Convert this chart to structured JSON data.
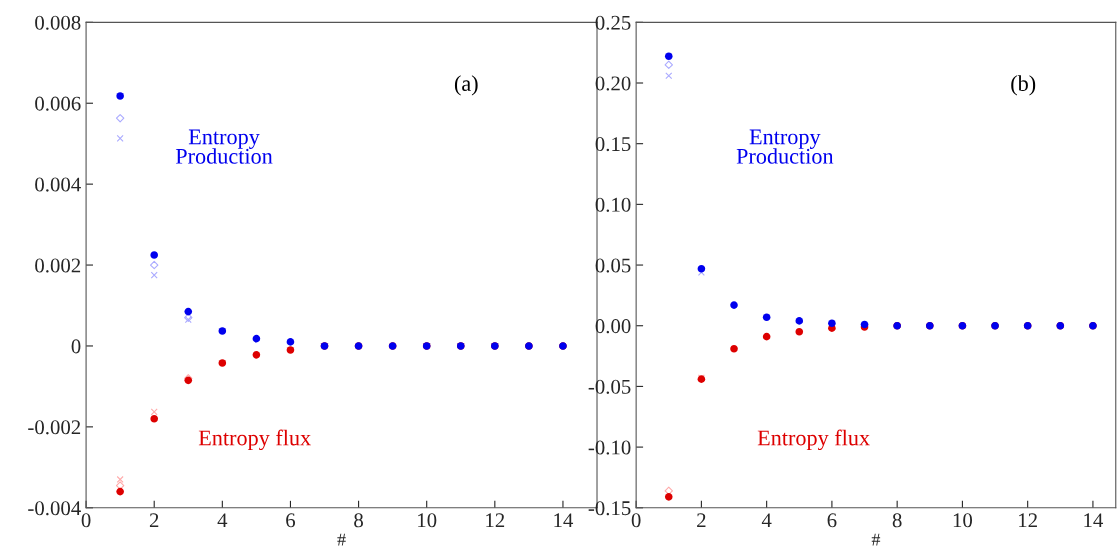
{
  "chart_data": [
    {
      "type": "scatter",
      "xlabel": "#",
      "annotations": [
        "(a)",
        "Entropy\nProduction",
        "Entropy flux"
      ],
      "x": [
        1,
        2,
        3,
        4,
        5,
        6,
        7,
        8,
        9,
        10,
        11,
        12,
        13,
        14
      ],
      "xlim": [
        0,
        15
      ],
      "xticks": [
        0,
        2,
        4,
        6,
        8,
        10,
        12,
        14
      ],
      "ylim": [
        -0.004,
        0.008
      ],
      "yticks": [
        -0.004,
        -0.002,
        0,
        0.002,
        0.004,
        0.006,
        0.008
      ],
      "series": [
        {
          "color": "#aaaaff",
          "marker": "cross",
          "values": [
            0.00513,
            0.00175,
            0.00065,
            null,
            null,
            null,
            null,
            null,
            null,
            null,
            null,
            null,
            null,
            null
          ]
        },
        {
          "color": "#aaaaff",
          "marker": "diamond",
          "values": [
            0.00563,
            0.002,
            0.0007,
            null,
            null,
            null,
            null,
            null,
            null,
            null,
            null,
            null,
            null,
            null
          ]
        },
        {
          "color": "#ffaaaa",
          "marker": "cross",
          "values": [
            -0.0033,
            -0.00163,
            null,
            null,
            null,
            null,
            null,
            null,
            null,
            null,
            null,
            null,
            null,
            null
          ]
        },
        {
          "color": "#ffaaaa",
          "marker": "diamond",
          "values": [
            -0.00345,
            null,
            -0.0008,
            null,
            null,
            null,
            null,
            null,
            null,
            null,
            null,
            null,
            null,
            null
          ]
        },
        {
          "color": "#dd0000",
          "marker": "circle",
          "values": [
            -0.0036,
            -0.0018,
            -0.00085,
            -0.00042,
            -0.00022,
            -0.0001,
            0,
            0,
            0,
            0,
            0,
            0,
            0,
            0
          ]
        },
        {
          "color": "#0000ee",
          "marker": "circle",
          "values": [
            0.00618,
            0.00225,
            0.00085,
            0.00037,
            0.00018,
            0.0001,
            0,
            0,
            0,
            0,
            0,
            0,
            0,
            0
          ]
        }
      ]
    },
    {
      "type": "scatter",
      "xlabel": "#",
      "annotations": [
        "(b)",
        "Entropy\nProduction",
        "Entropy flux"
      ],
      "x": [
        1,
        2,
        3,
        4,
        5,
        6,
        7,
        8,
        9,
        10,
        11,
        12,
        13,
        14
      ],
      "xlim": [
        0,
        14.7
      ],
      "xticks": [
        0,
        2,
        4,
        6,
        8,
        10,
        12,
        14
      ],
      "ylim": [
        -0.15,
        0.25
      ],
      "yticks": [
        {
          "value": -0.15,
          "label": "-0.15"
        },
        {
          "value": -0.1,
          "label": "-0.10"
        },
        {
          "value": -0.05,
          "label": "-0.05"
        },
        {
          "value": 0,
          "label": "0.00"
        },
        {
          "value": 0.05,
          "label": "0.05"
        },
        {
          "value": 0.1,
          "label": "0.10"
        },
        {
          "value": 0.15,
          "label": "0.15"
        },
        {
          "value": 0.2,
          "label": "0.20"
        },
        {
          "value": 0.25,
          "label": "0.25"
        }
      ],
      "series": [
        {
          "color": "#aaaaff",
          "marker": "cross",
          "values": [
            0.206,
            0.044,
            null,
            null,
            null,
            null,
            null,
            null,
            null,
            null,
            null,
            null,
            null,
            null
          ]
        },
        {
          "color": "#aaaaff",
          "marker": "diamond",
          "values": [
            0.215,
            null,
            null,
            null,
            null,
            null,
            null,
            null,
            null,
            null,
            null,
            null,
            null,
            null
          ]
        },
        {
          "color": "#ffaaaa",
          "marker": "cross",
          "values": [
            null,
            -0.043,
            null,
            null,
            null,
            null,
            null,
            null,
            null,
            null,
            null,
            null,
            null,
            null
          ]
        },
        {
          "color": "#ffaaaa",
          "marker": "diamond",
          "values": [
            -0.136,
            null,
            null,
            null,
            null,
            null,
            null,
            null,
            null,
            null,
            null,
            null,
            null,
            null
          ]
        },
        {
          "color": "#dd0000",
          "marker": "circle",
          "values": [
            -0.141,
            -0.044,
            -0.019,
            -0.009,
            -0.005,
            -0.002,
            -0.001,
            0,
            0,
            0,
            0,
            0,
            0,
            0
          ]
        },
        {
          "color": "#0000ee",
          "marker": "circle",
          "values": [
            0.222,
            0.047,
            0.017,
            0.007,
            0.004,
            0.002,
            0.001,
            0,
            0,
            0,
            0,
            0,
            0,
            0
          ]
        }
      ]
    }
  ]
}
